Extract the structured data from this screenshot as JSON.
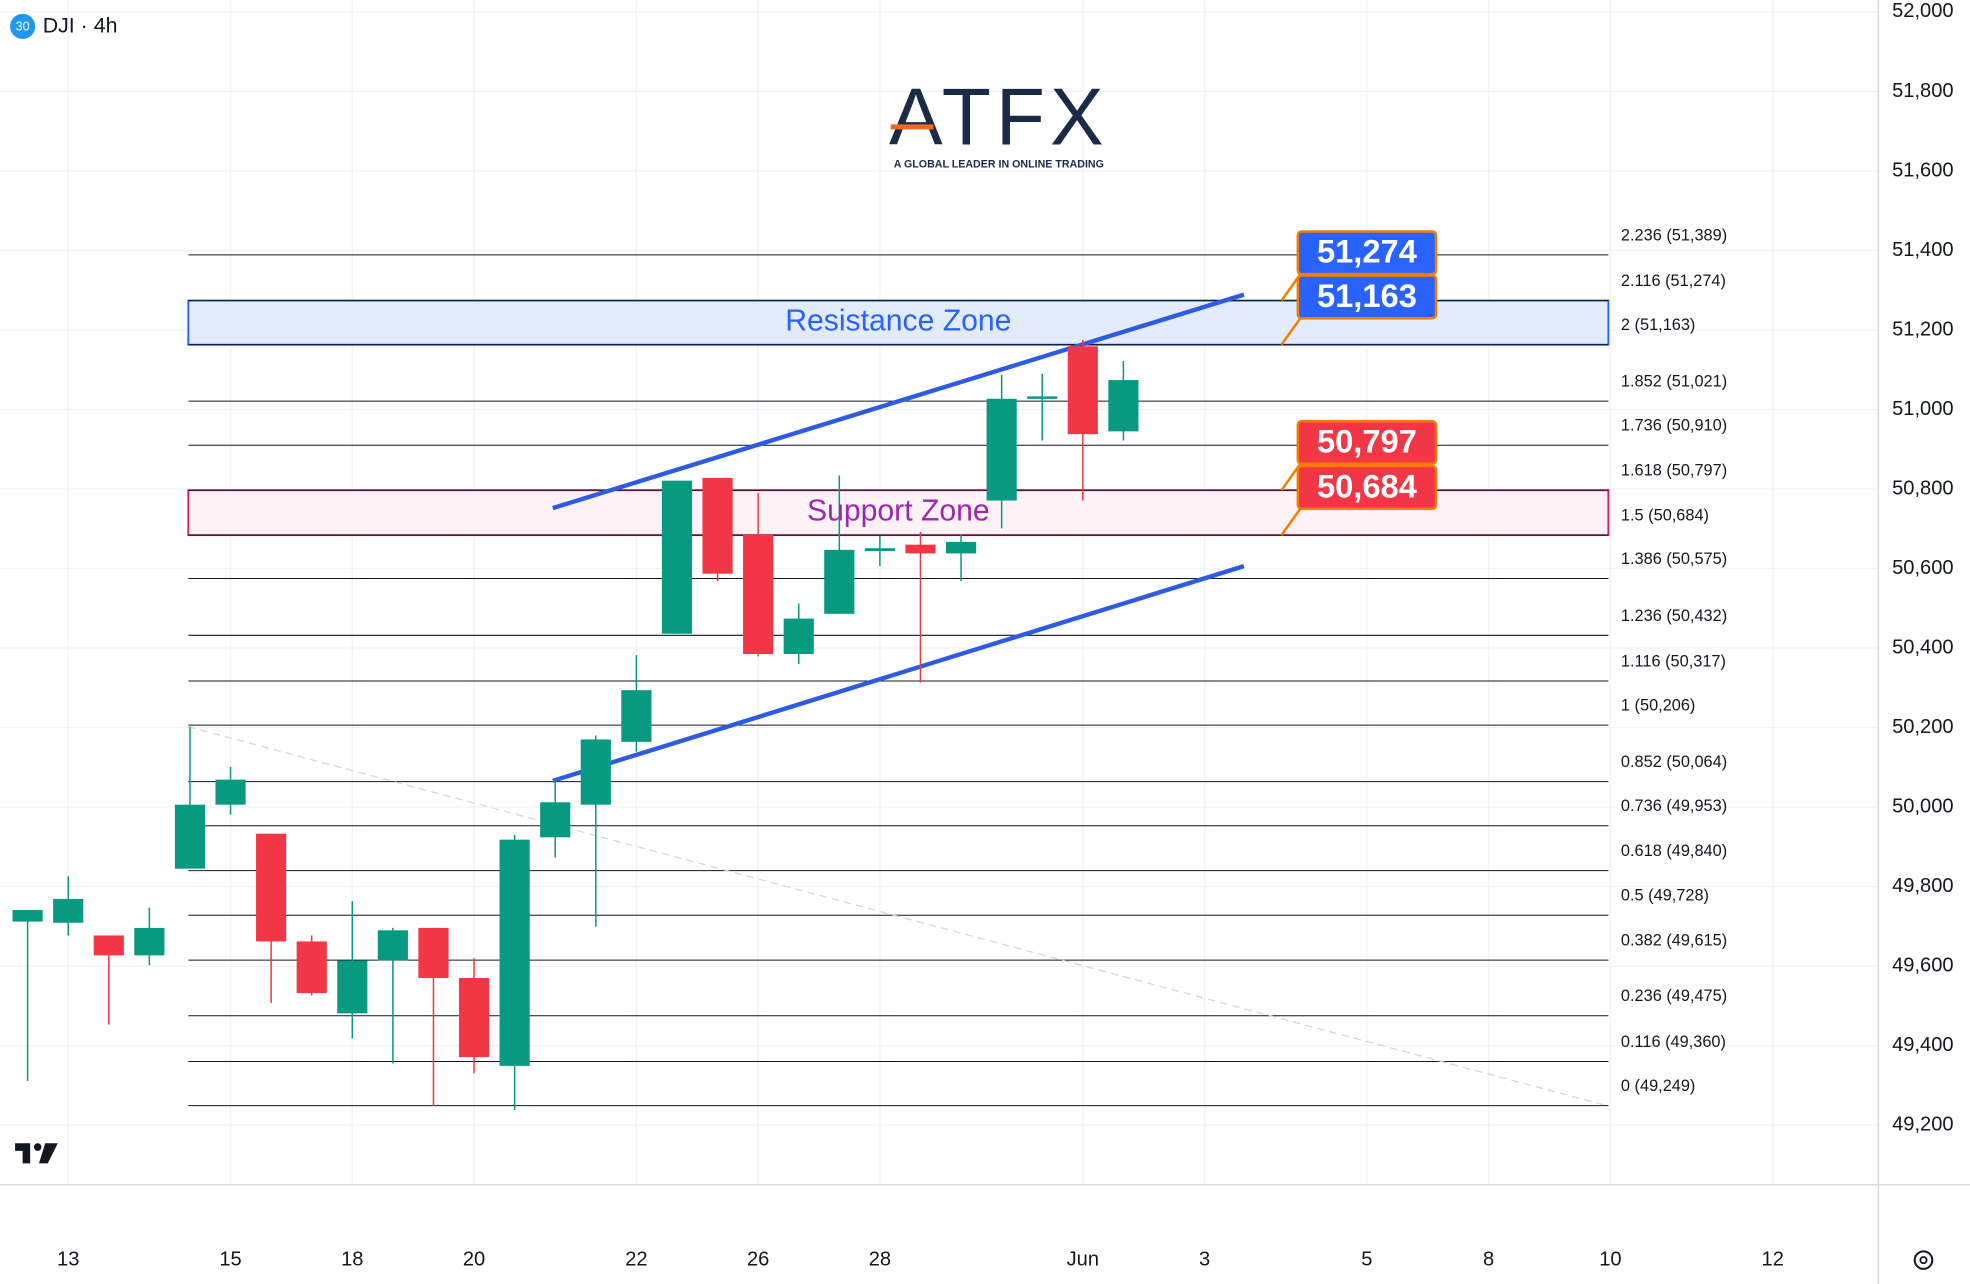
{
  "chart_data": {
    "type": "candlestick",
    "title": "DJI · 4h",
    "badge": "30",
    "up_color": "#089981",
    "down_color": "#f23645",
    "x": [
      0,
      1,
      2,
      3,
      4,
      5,
      6,
      7,
      8,
      9,
      10,
      11,
      12,
      13,
      14,
      15,
      16,
      17,
      18,
      19,
      20,
      21,
      22,
      23,
      24,
      25,
      26,
      27
    ],
    "open": [
      49712,
      49709,
      49677,
      49627,
      49845,
      50006,
      49933,
      49662,
      49481,
      49614,
      49696,
      49570,
      49349,
      49924,
      50006,
      50164,
      50436,
      50828,
      50685,
      50385,
      50486,
      50644,
      50660,
      50638,
      50771,
      51027,
      51159,
      50945
    ],
    "high": [
      49741,
      49826,
      49677,
      49747,
      50202,
      50101,
      49933,
      49677,
      49763,
      49696,
      49696,
      49620,
      49930,
      50069,
      50180,
      50382,
      50821,
      50828,
      50790,
      50512,
      50834,
      50682,
      50692,
      50685,
      51087,
      51090,
      51175,
      51122
    ],
    "low": [
      49311,
      49677,
      49453,
      49602,
      49845,
      49981,
      49507,
      49526,
      49418,
      49355,
      49248,
      49330,
      49238,
      49873,
      49699,
      50139,
      50436,
      50568,
      50379,
      50360,
      50486,
      50606,
      50313,
      50568,
      50701,
      50922,
      50771,
      50922
    ],
    "close": [
      49741,
      49769,
      49627,
      49696,
      50006,
      50069,
      49662,
      49532,
      49614,
      49690,
      49570,
      49371,
      49918,
      50012,
      50170,
      50294,
      50821,
      50587,
      50385,
      50474,
      50647,
      50651,
      50638,
      50667,
      51027,
      51033,
      50938,
      51074
    ],
    "xlim": [
      -0.68,
      45.6
    ],
    "ylim": [
      49050,
      52030
    ],
    "xticks": [
      {
        "value": 1,
        "label": "13"
      },
      {
        "value": 5,
        "label": "15"
      },
      {
        "value": 8,
        "label": "18"
      },
      {
        "value": 11,
        "label": "20"
      },
      {
        "value": 15,
        "label": "22"
      },
      {
        "value": 18,
        "label": "26"
      },
      {
        "value": 21,
        "label": "28"
      },
      {
        "value": 26,
        "label": "Jun"
      },
      {
        "value": 29,
        "label": "3"
      },
      {
        "value": 33,
        "label": "5"
      },
      {
        "value": 36,
        "label": "8"
      },
      {
        "value": 39,
        "label": "10"
      },
      {
        "value": 43,
        "label": "12"
      }
    ],
    "yticks": [
      {
        "value": 52000,
        "label": "52,000"
      },
      {
        "value": 51800,
        "label": "51,800"
      },
      {
        "value": 51600,
        "label": "51,600"
      },
      {
        "value": 51400,
        "label": "51,400"
      },
      {
        "value": 51200,
        "label": "51,200"
      },
      {
        "value": 51000,
        "label": "51,000"
      },
      {
        "value": 50800,
        "label": "50,800"
      },
      {
        "value": 50600,
        "label": "50,600"
      },
      {
        "value": 50400,
        "label": "50,400"
      },
      {
        "value": 50200,
        "label": "50,200"
      },
      {
        "value": 50000,
        "label": "50,000"
      },
      {
        "value": 49800,
        "label": "49,800"
      },
      {
        "value": 49600,
        "label": "49,600"
      },
      {
        "value": 49400,
        "label": "49,400"
      },
      {
        "value": 49200,
        "label": "49,200"
      }
    ],
    "fib_x": [
      3.96,
      38.95
    ],
    "fib_levels": [
      {
        "value": 51389,
        "label": "2.236 (51,389)"
      },
      {
        "value": 51274,
        "label": "2.116 (51,274)"
      },
      {
        "value": 51163,
        "label": "2 (51,163)"
      },
      {
        "value": 51021,
        "label": "1.852 (51,021)"
      },
      {
        "value": 50910,
        "label": "1.736 (50,910)"
      },
      {
        "value": 50797,
        "label": "1.618 (50,797)"
      },
      {
        "value": 50684,
        "label": "1.5 (50,684)"
      },
      {
        "value": 50575,
        "label": "1.386 (50,575)"
      },
      {
        "value": 50432,
        "label": "1.236 (50,432)"
      },
      {
        "value": 50317,
        "label": "1.116 (50,317)"
      },
      {
        "value": 50206,
        "label": "1 (50,206)"
      },
      {
        "value": 50064,
        "label": "0.852 (50,064)"
      },
      {
        "value": 49953,
        "label": "0.736 (49,953)"
      },
      {
        "value": 49840,
        "label": "0.618 (49,840)"
      },
      {
        "value": 49728,
        "label": "0.5 (49,728)"
      },
      {
        "value": 49615,
        "label": "0.382 (49,615)"
      },
      {
        "value": 49475,
        "label": "0.236 (49,475)"
      },
      {
        "value": 49360,
        "label": "0.116 (49,360)"
      },
      {
        "value": 49249,
        "label": "0 (49,249)"
      }
    ],
    "zones": [
      {
        "label": "Resistance Zone",
        "range": [
          51163,
          51274
        ],
        "color": "#2962ff",
        "fill": "#e3ecfd",
        "text_color": "#2962ff"
      },
      {
        "label": "Support Zone",
        "range": [
          50684,
          50797
        ],
        "color": "#d81b60",
        "fill": "#fdf3f6",
        "text_color": "#9c27b0"
      }
    ],
    "price_labels": [
      {
        "value": 51274,
        "label": "51,274",
        "color": "#2962ff"
      },
      {
        "value": 51163,
        "label": "51,163",
        "color": "#2962ff"
      },
      {
        "value": 50797,
        "label": "50,797",
        "color": "#f23645"
      },
      {
        "value": 50684,
        "label": "50,684",
        "color": "#f23645"
      }
    ],
    "trendlines": [
      {
        "x": [
          12.94,
          29.97
        ],
        "y": [
          50752,
          51289
        ],
        "color": "#2f5be3",
        "dashed": false
      },
      {
        "x": [
          12.94,
          29.97
        ],
        "y": [
          50066,
          50606
        ],
        "color": "#2f5be3",
        "dashed": false
      },
      {
        "x": [
          3.96,
          38.95
        ],
        "y": [
          50202,
          49248
        ],
        "color": "#d6d6d6",
        "dashed": true
      }
    ]
  },
  "logo": {
    "text": "ATFX",
    "tagline": "A GLOBAL LEADER IN ONLINE TRADING"
  }
}
